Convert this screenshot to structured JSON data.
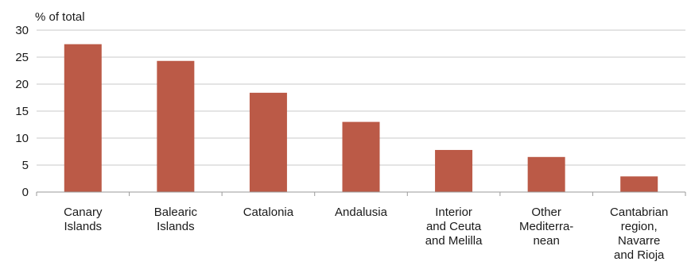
{
  "chart_data": {
    "type": "bar",
    "ylabel": "% of total",
    "ylim": [
      0,
      30
    ],
    "yticks": [
      0,
      5,
      10,
      15,
      20,
      25,
      30
    ],
    "grid": true,
    "categories": [
      [
        "Canary",
        "Islands"
      ],
      [
        "Balearic",
        "Islands"
      ],
      [
        "Catalonia"
      ],
      [
        "Andalusia"
      ],
      [
        "Interior",
        "and Ceuta",
        "and Melilla"
      ],
      [
        "Other",
        "Mediterra-",
        "nean"
      ],
      [
        "Cantabrian",
        "region,",
        "Navarre",
        "and Rioja"
      ]
    ],
    "values": [
      27.4,
      24.3,
      18.4,
      13.0,
      7.8,
      6.5,
      2.9
    ],
    "bar_color": "#bb5a47"
  }
}
